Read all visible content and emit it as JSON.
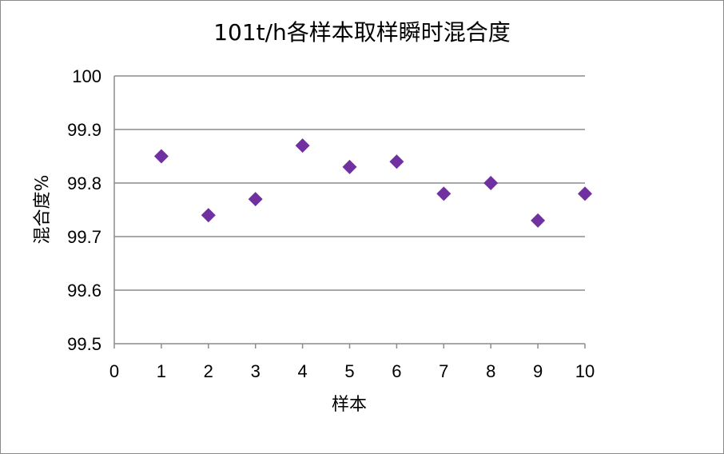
{
  "chart_data": {
    "type": "scatter",
    "title": "101t/h各样本取样瞬时混合度",
    "xlabel": "样本",
    "ylabel": "混合度%",
    "xlim": [
      0,
      10
    ],
    "ylim": [
      99.5,
      100
    ],
    "x_ticks": [
      "0",
      "1",
      "2",
      "3",
      "4",
      "5",
      "6",
      "7",
      "8",
      "9",
      "10"
    ],
    "y_ticks": [
      "99.5",
      "99.6",
      "99.7",
      "99.8",
      "99.9",
      "100"
    ],
    "grid": true,
    "legend": "none",
    "marker": "diamond",
    "series": [
      {
        "x": [
          1,
          2,
          3,
          4,
          5,
          6,
          7,
          8,
          9,
          10
        ],
        "y": [
          99.85,
          99.74,
          99.77,
          99.87,
          99.83,
          99.84,
          99.78,
          99.8,
          99.73,
          99.78
        ],
        "color": "#7030a0"
      }
    ]
  }
}
